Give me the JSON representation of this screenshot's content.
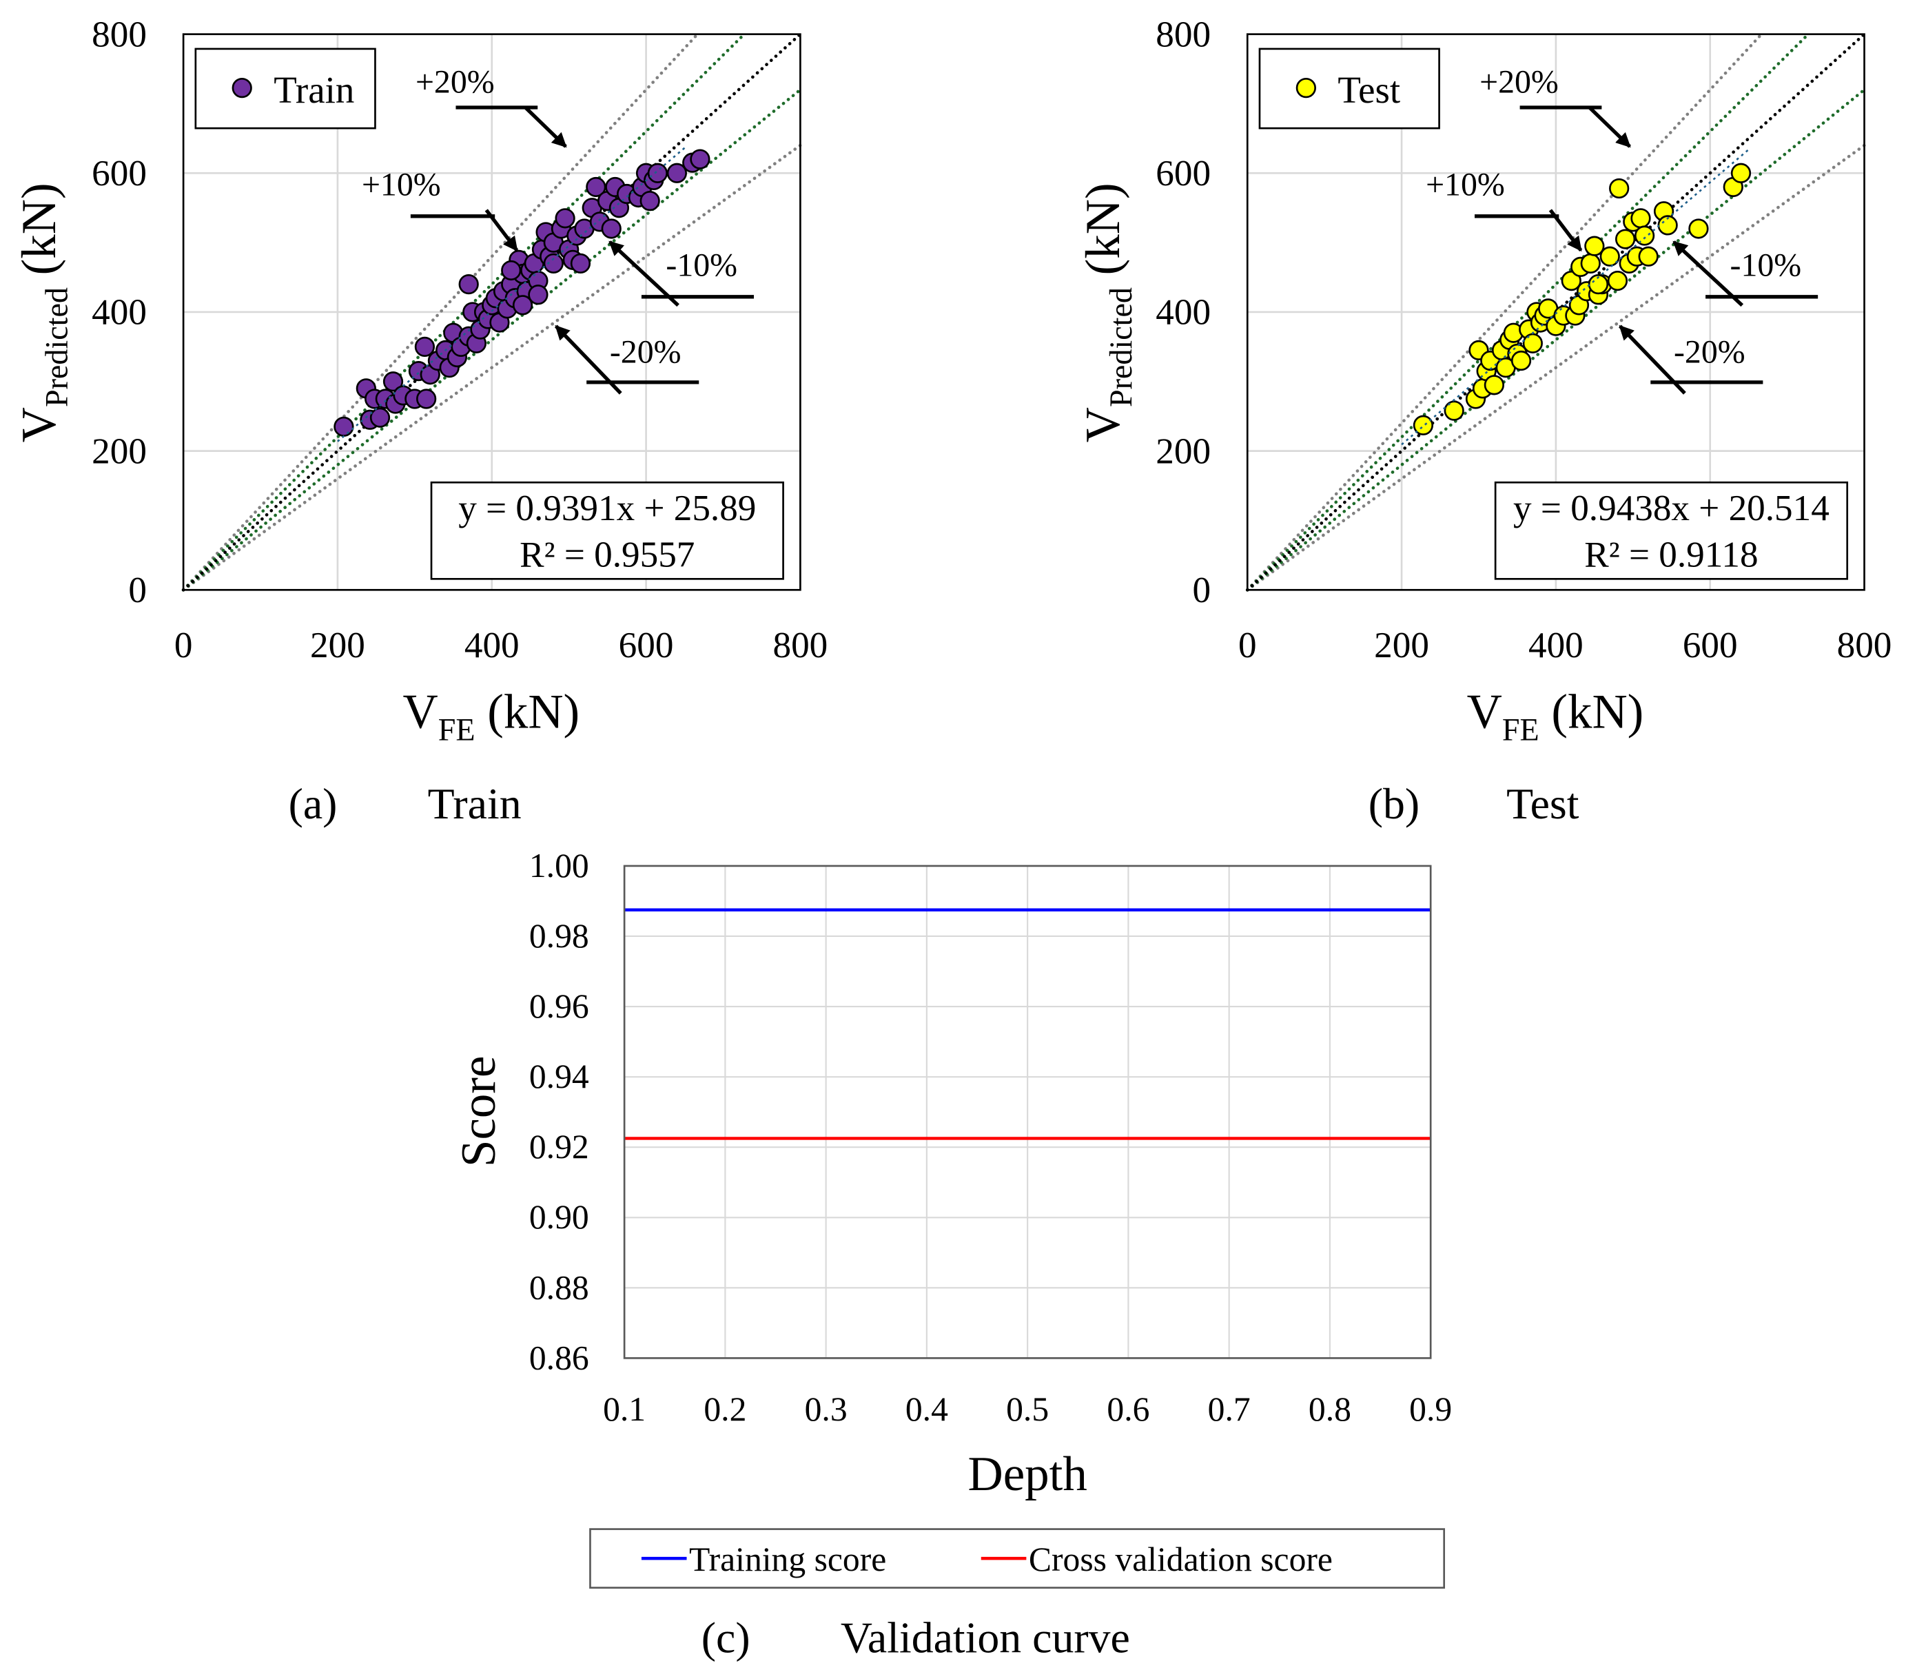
{
  "colors": {
    "train": "#7030a0",
    "test": "#ffff00",
    "training_line": "#0000ff",
    "cv_line": "#ff0000",
    "band10": "#1e6b2a",
    "band20": "#808080",
    "trend": "#1f5f8b"
  },
  "captions": {
    "a_letter": "(a)",
    "a_title": "Train",
    "b_letter": "(b)",
    "b_title": "Test",
    "c_letter": "(c)",
    "c_title": "Validation curve"
  },
  "chart_data": [
    {
      "type": "scatter",
      "title": "Train",
      "xlabel": "V_FE (kN)",
      "xlabel_main": "V",
      "xlabel_sub": "FE",
      "xlabel_unit": " (kN)",
      "ylabel": "V_Predicted (kN)",
      "ylabel_main": "V",
      "ylabel_sub": "Predicted",
      "ylabel_unit": " (kN)",
      "xlim": [
        0,
        800
      ],
      "ylim": [
        0,
        800
      ],
      "xticks": [
        "0",
        "200",
        "400",
        "600",
        "800"
      ],
      "yticks": [
        "0",
        "200",
        "400",
        "600",
        "800"
      ],
      "grid": true,
      "legend": {
        "label": "Train",
        "placement": "top-left"
      },
      "equation": "y = 0.9391x + 25.89",
      "r2": "R² = 0.9557",
      "trend": {
        "slope": 0.9391,
        "intercept": 25.89
      },
      "annotations": [
        "+20%",
        "+10%",
        "-10%",
        "-20%"
      ],
      "points": [
        [
          208,
          235
        ],
        [
          237,
          290
        ],
        [
          242,
          245
        ],
        [
          248,
          275
        ],
        [
          255,
          248
        ],
        [
          262,
          275
        ],
        [
          275,
          268
        ],
        [
          272,
          300
        ],
        [
          285,
          280
        ],
        [
          300,
          275
        ],
        [
          305,
          315
        ],
        [
          313,
          350
        ],
        [
          315,
          275
        ],
        [
          320,
          310
        ],
        [
          330,
          330
        ],
        [
          340,
          345
        ],
        [
          345,
          320
        ],
        [
          350,
          370
        ],
        [
          355,
          335
        ],
        [
          360,
          350
        ],
        [
          370,
          440
        ],
        [
          370,
          365
        ],
        [
          375,
          400
        ],
        [
          380,
          355
        ],
        [
          385,
          375
        ],
        [
          390,
          400
        ],
        [
          395,
          390
        ],
        [
          400,
          410
        ],
        [
          405,
          420
        ],
        [
          410,
          385
        ],
        [
          415,
          430
        ],
        [
          420,
          405
        ],
        [
          425,
          440
        ],
        [
          430,
          420
        ],
        [
          435,
          475
        ],
        [
          440,
          455
        ],
        [
          445,
          430
        ],
        [
          450,
          460
        ],
        [
          455,
          470
        ],
        [
          460,
          445
        ],
        [
          465,
          490
        ],
        [
          470,
          515
        ],
        [
          475,
          480
        ],
        [
          480,
          500
        ],
        [
          490,
          520
        ],
        [
          495,
          535
        ],
        [
          500,
          490
        ],
        [
          505,
          475
        ],
        [
          510,
          510
        ],
        [
          515,
          470
        ],
        [
          520,
          520
        ],
        [
          530,
          550
        ],
        [
          535,
          580
        ],
        [
          540,
          530
        ],
        [
          550,
          560
        ],
        [
          555,
          520
        ],
        [
          560,
          580
        ],
        [
          565,
          550
        ],
        [
          575,
          570
        ],
        [
          590,
          565
        ],
        [
          595,
          580
        ],
        [
          600,
          600
        ],
        [
          605,
          560
        ],
        [
          610,
          590
        ],
        [
          615,
          600
        ],
        [
          640,
          600
        ],
        [
          660,
          615
        ],
        [
          670,
          620
        ],
        [
          425,
          460
        ],
        [
          440,
          410
        ],
        [
          460,
          425
        ],
        [
          480,
          470
        ]
      ]
    },
    {
      "type": "scatter",
      "title": "Test",
      "xlabel": "V_FE (kN)",
      "xlabel_main": "V",
      "xlabel_sub": "FE",
      "xlabel_unit": " (kN)",
      "ylabel": "V_Predicted (kN)",
      "ylabel_main": "V",
      "ylabel_sub": "Predicted",
      "ylabel_unit": " (kN)",
      "xlim": [
        0,
        800
      ],
      "ylim": [
        0,
        800
      ],
      "xticks": [
        "0",
        "200",
        "400",
        "600",
        "800"
      ],
      "yticks": [
        "0",
        "200",
        "400",
        "600",
        "800"
      ],
      "grid": true,
      "legend": {
        "label": "Test",
        "placement": "top-left"
      },
      "equation": "y = 0.9438x + 20.514",
      "r2": "R² = 0.9118",
      "trend": {
        "slope": 0.9438,
        "intercept": 20.514
      },
      "annotations": [
        "+20%",
        "+10%",
        "-10%",
        "-20%"
      ],
      "points": [
        [
          228,
          237
        ],
        [
          268,
          258
        ],
        [
          296,
          275
        ],
        [
          300,
          345
        ],
        [
          305,
          290
        ],
        [
          310,
          315
        ],
        [
          315,
          330
        ],
        [
          320,
          295
        ],
        [
          330,
          345
        ],
        [
          335,
          320
        ],
        [
          340,
          360
        ],
        [
          345,
          370
        ],
        [
          350,
          340
        ],
        [
          355,
          330
        ],
        [
          365,
          375
        ],
        [
          370,
          355
        ],
        [
          375,
          400
        ],
        [
          380,
          385
        ],
        [
          385,
          395
        ],
        [
          390,
          405
        ],
        [
          400,
          380
        ],
        [
          410,
          395
        ],
        [
          420,
          445
        ],
        [
          425,
          395
        ],
        [
          430,
          410
        ],
        [
          432,
          465
        ],
        [
          440,
          430
        ],
        [
          445,
          470
        ],
        [
          450,
          495
        ],
        [
          455,
          425
        ],
        [
          460,
          440
        ],
        [
          470,
          480
        ],
        [
          480,
          445
        ],
        [
          482,
          578
        ],
        [
          490,
          505
        ],
        [
          495,
          470
        ],
        [
          500,
          530
        ],
        [
          505,
          480
        ],
        [
          510,
          535
        ],
        [
          515,
          510
        ],
        [
          520,
          480
        ],
        [
          540,
          545
        ],
        [
          545,
          525
        ],
        [
          585,
          520
        ],
        [
          630,
          580
        ],
        [
          640,
          600
        ],
        [
          455,
          440
        ]
      ]
    },
    {
      "type": "line",
      "title": "Validation curve",
      "xlabel": "Depth",
      "ylabel": "Score",
      "xlim": [
        0.1,
        0.9
      ],
      "ylim": [
        0.86,
        1.0
      ],
      "xticks": [
        "0.1",
        "0.2",
        "0.3",
        "0.4",
        "0.5",
        "0.6",
        "0.7",
        "0.8",
        "0.9"
      ],
      "yticks": [
        "0.86",
        "0.88",
        "0.90",
        "0.92",
        "0.94",
        "0.96",
        "0.98",
        "1.00"
      ],
      "grid": true,
      "legend_placement": "bottom",
      "series": [
        {
          "name": "Training score",
          "x": [
            0.1,
            0.9
          ],
          "y": [
            0.9875,
            0.9875
          ]
        },
        {
          "name": "Cross validation score",
          "x": [
            0.1,
            0.9
          ],
          "y": [
            0.9225,
            0.9225
          ]
        }
      ]
    }
  ]
}
